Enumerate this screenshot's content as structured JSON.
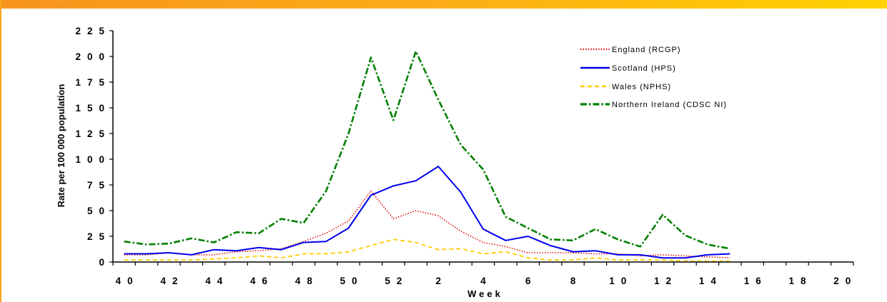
{
  "chart_data": {
    "type": "line",
    "title": "",
    "xlabel": "Week",
    "ylabel": "Rate per 100 000 population",
    "ylim": [
      0,
      225
    ],
    "y_ticks": [
      0,
      25,
      50,
      75,
      100,
      125,
      150,
      175,
      200,
      225
    ],
    "x": [
      40,
      41,
      42,
      43,
      44,
      45,
      46,
      47,
      48,
      49,
      50,
      51,
      52,
      1,
      2,
      3,
      4,
      5,
      6,
      7,
      8,
      9,
      10,
      11,
      12,
      13,
      14,
      15,
      16,
      17,
      18,
      19,
      20
    ],
    "x_ticks": [
      40,
      42,
      44,
      46,
      48,
      50,
      52,
      2,
      4,
      6,
      8,
      10,
      12,
      14,
      16,
      18,
      20
    ],
    "grid": false,
    "legend_position": "top-right",
    "series": [
      {
        "name": "England (RCGP)",
        "color": "#dd0000",
        "line_style": "dotted",
        "values": [
          7,
          7,
          9,
          7,
          7,
          10,
          11,
          13,
          20,
          28,
          40,
          69,
          42,
          50,
          45,
          30,
          19,
          15,
          9,
          9,
          9,
          8,
          8,
          6,
          7,
          6,
          5,
          4,
          null,
          null,
          null,
          null,
          null
        ]
      },
      {
        "name": "Scotland (HPS)",
        "color": "#0000ee",
        "line_style": "solid",
        "values": [
          8,
          8,
          9,
          7,
          12,
          11,
          14,
          12,
          19,
          20,
          33,
          65,
          74,
          79,
          93,
          68,
          32,
          21,
          25,
          16,
          10,
          11,
          7,
          7,
          4,
          4,
          7,
          8,
          null,
          null,
          null,
          null,
          null
        ]
      },
      {
        "name": "Wales (NPHS)",
        "color": "#ffcc00",
        "line_style": "dashed",
        "values": [
          2,
          2,
          2,
          2,
          3,
          4,
          6,
          4,
          8,
          8,
          10,
          16,
          22,
          19,
          12,
          13,
          8,
          10,
          4,
          2,
          2,
          4,
          2,
          2,
          2,
          1,
          1,
          1,
          null,
          null,
          null,
          null,
          null
        ]
      },
      {
        "name": "Northern Ireland (CDSC NI)",
        "color": "#008000",
        "line_style": "dash-dot",
        "values": [
          20,
          17,
          18,
          23,
          19,
          29,
          28,
          42,
          38,
          69,
          125,
          199,
          138,
          205,
          158,
          114,
          90,
          44,
          33,
          22,
          21,
          32,
          22,
          15,
          46,
          26,
          17,
          13,
          null,
          null,
          null,
          null,
          null
        ]
      }
    ]
  }
}
